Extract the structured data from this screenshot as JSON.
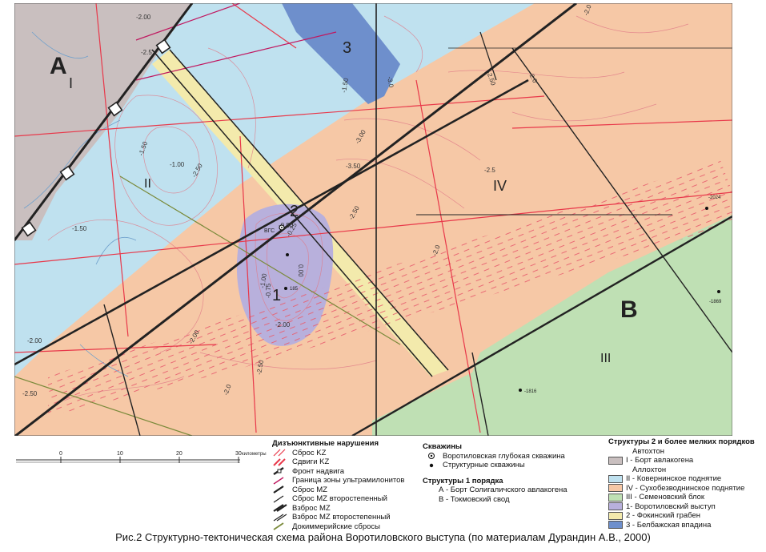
{
  "colors": {
    "autochthon_rim": "#c9bfbf",
    "kovernino": "#bfe1ef",
    "sukhobezvodnoe": "#f6c8a6",
    "semenov": "#bfe0b4",
    "vorotilov": "#b8b0dc",
    "fokino": "#f3eaac",
    "belbazh": "#6e8fcc",
    "fault_red": "#e8384a",
    "fault_black": "#222222",
    "ultramylonite": "#c01860",
    "docimmerian": "#7a8a3a"
  },
  "map": {
    "labels": {
      "A": "А",
      "I": "I",
      "II": "II",
      "III": "III",
      "IV": "IV",
      "B": "В",
      "n1": "1",
      "n2": "2",
      "n3": "3"
    },
    "contour_labels": [
      "-2.00",
      "-2.5",
      "-2.50",
      "-3.0",
      "-2.0",
      "-2.0",
      "-1.50",
      "-1.00",
      "-2.50",
      "-1.50",
      "-3.00",
      "-3.50",
      "-2.50",
      "-2.5",
      "-2.0",
      "-2.00",
      "-2.50",
      "-2.0",
      "-2.00",
      "-2.00",
      "-2.50",
      "-1.50",
      "-1.00",
      "-0.75",
      "0.00",
      "-0.25",
      "-0.50"
    ],
    "wells": {
      "deep": "ВГС",
      "w2024": "-2024",
      "w1869": "-1869",
      "w1816": "-1816",
      "w185": "185"
    }
  },
  "scale": {
    "ticks": [
      "0",
      "10",
      "20",
      "30"
    ],
    "unit": "километры"
  },
  "legend": {
    "faults_title": "Дизъюнктивные нарушения",
    "faults": [
      "Сброс KZ",
      "Сдвиги KZ",
      "Фронт надвига",
      "Граница зоны ультрамилонитов",
      "Сброс MZ",
      "Сброс MZ второстепенный",
      "Взброс MZ",
      "Взброс MZ второстепенный",
      "Докиммерийские сбросы"
    ],
    "wells_title": "Скважины",
    "wells": [
      "Воротиловская глубокая скважина",
      "Структурные скважины"
    ],
    "order1_title": "Структуры 1 порядка",
    "order1": [
      "А - Борт Солигаличского авлакогена",
      "В - Токмовский свод"
    ],
    "order2_title": "Структуры 2 и более мелких порядков",
    "autochthon": "Автохтон",
    "autochthon_items": [
      "I - Борт авлакогена"
    ],
    "allochthon": "Аллохтон",
    "allochthon_items": [
      "II - Ковернинское поднятие",
      "IV - Сухобезводнинское поднятие",
      "III - Семеновский блок",
      "1- Воротиловский выступ",
      "2 - Фокинский грабен",
      "3 - Белбажская впадина"
    ]
  },
  "caption": "Рис.2 Структурно-тектоническая схема района Воротиловского выступа (по материалам Дурандин А.В., 2000)"
}
